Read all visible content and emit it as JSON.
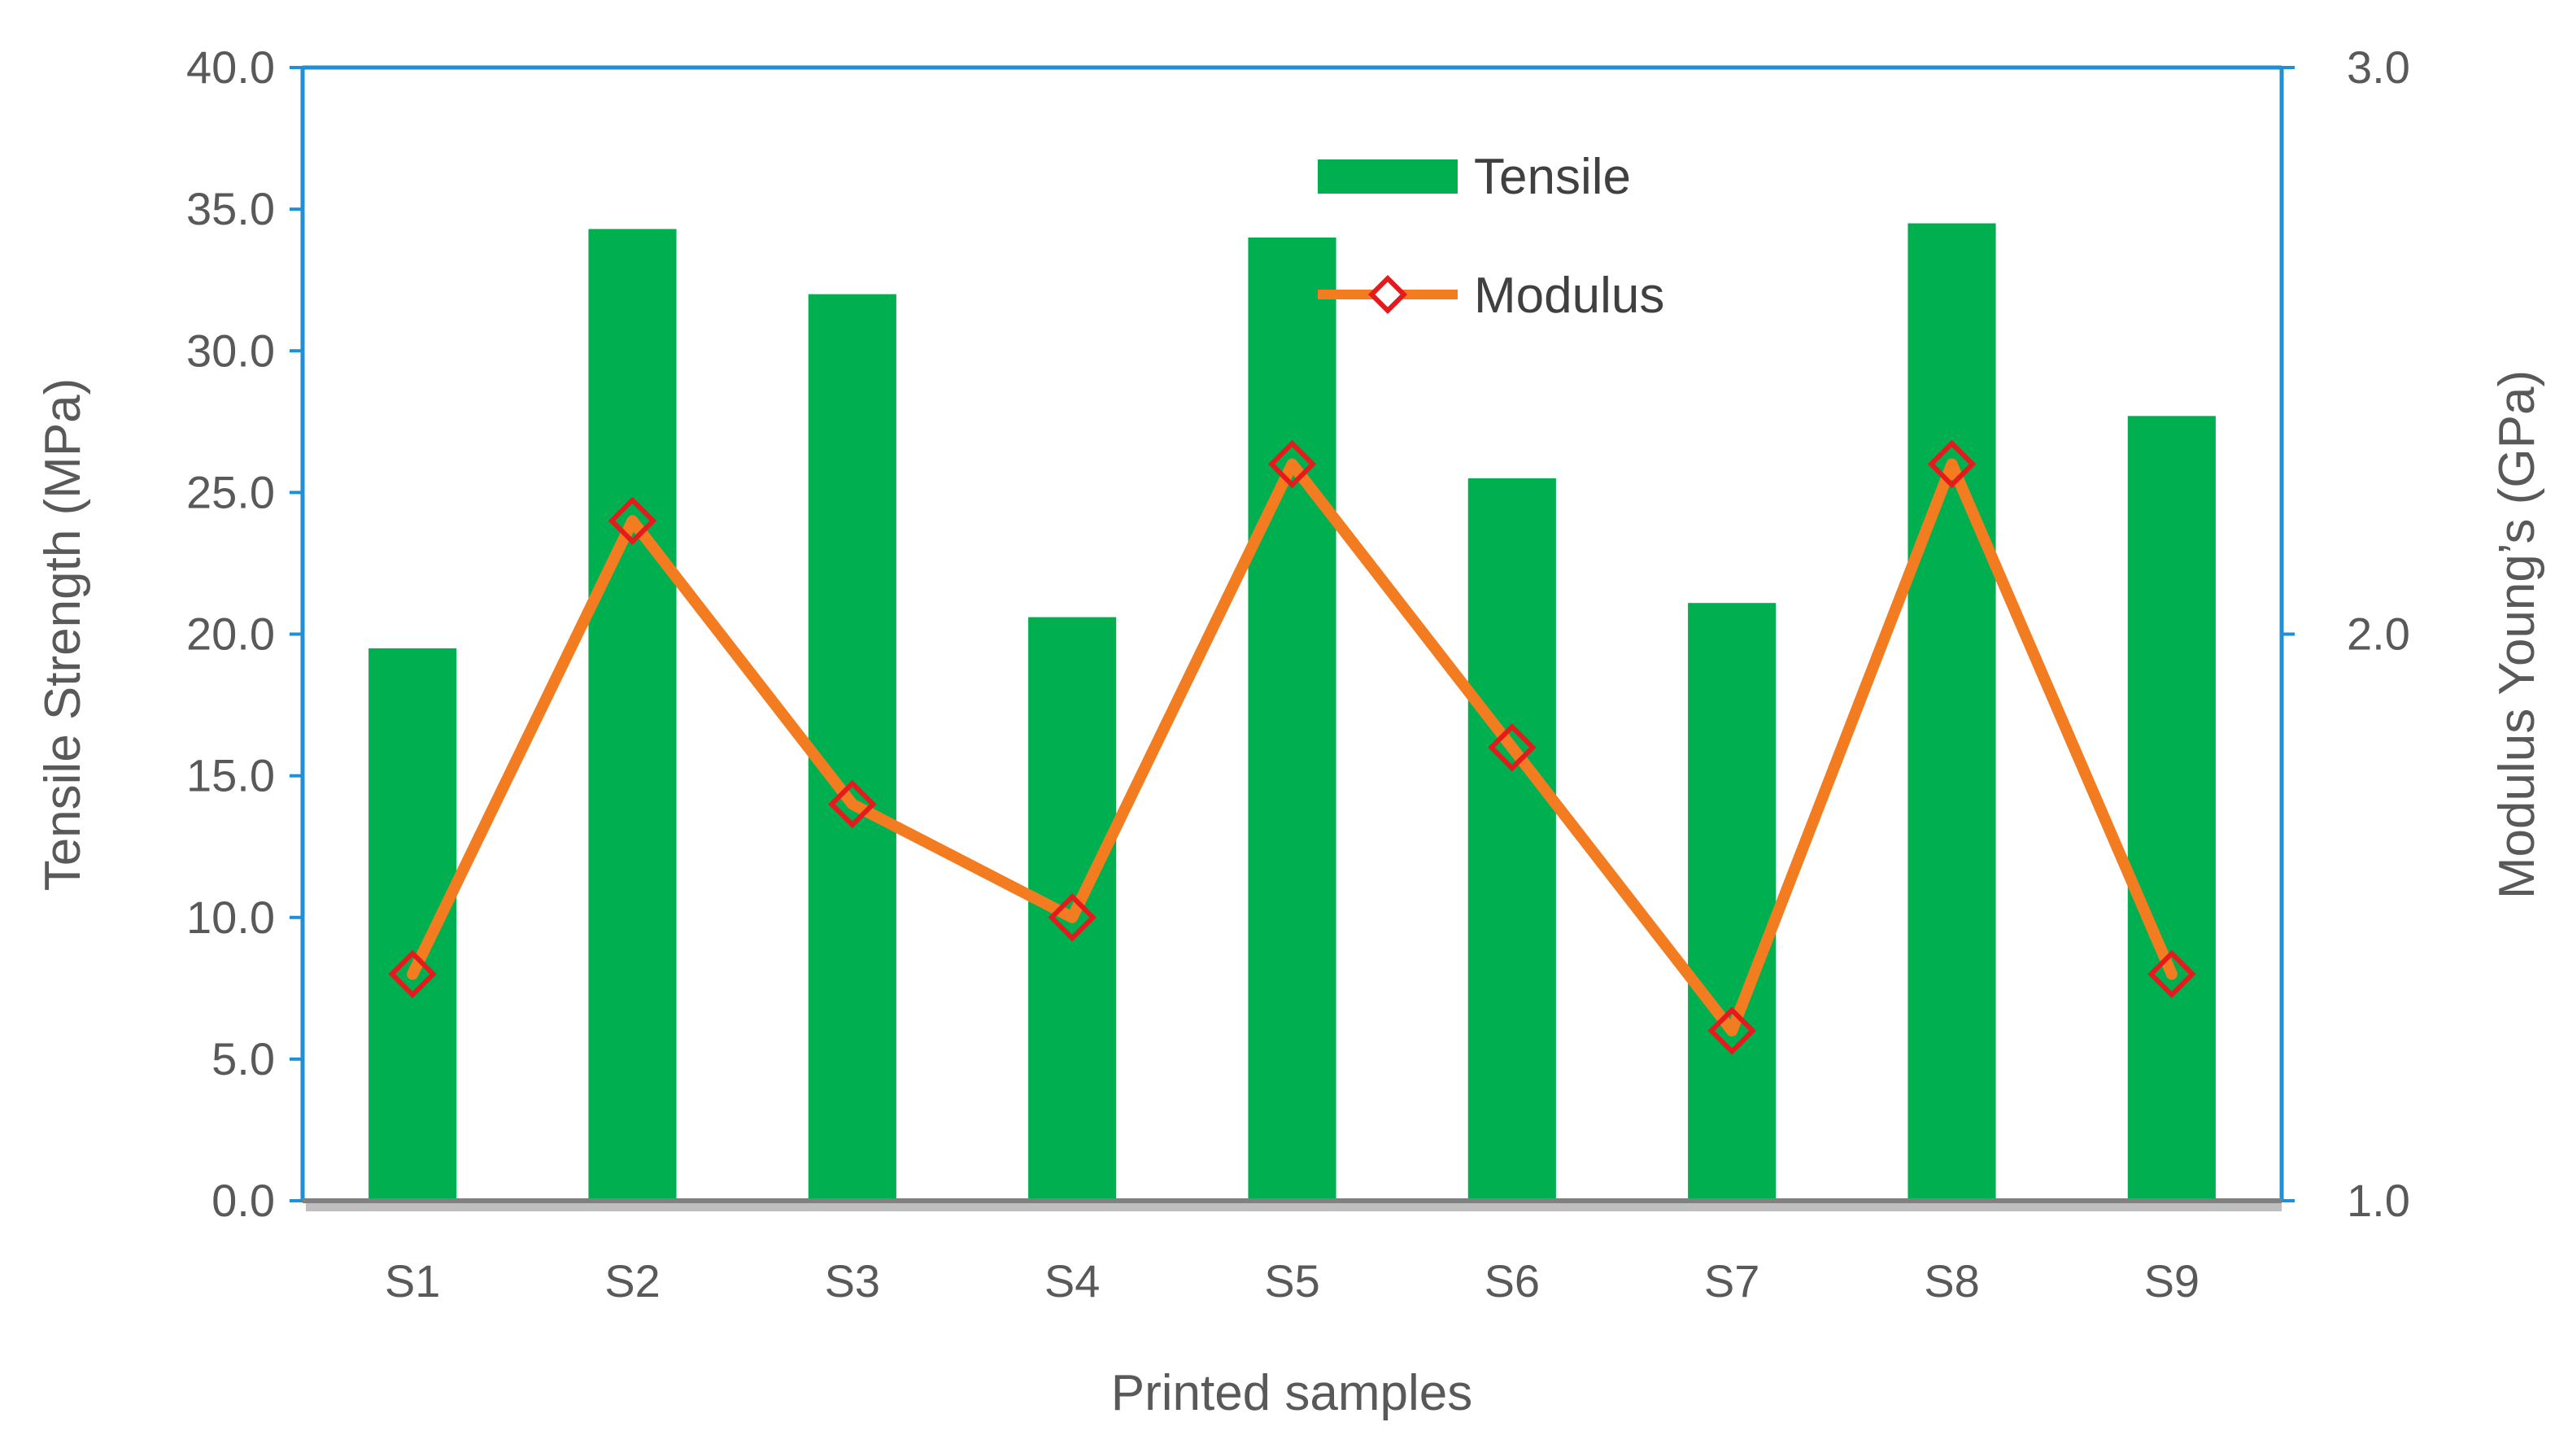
{
  "chart_data": {
    "type": "bar",
    "title": "",
    "categories": [
      "S1",
      "S2",
      "S3",
      "S4",
      "S5",
      "S6",
      "S7",
      "S8",
      "S9"
    ],
    "series": [
      {
        "name": "Tensile",
        "type": "bar",
        "axis": "left",
        "color": "#00B050",
        "values": [
          19.5,
          34.3,
          32.0,
          20.6,
          34.0,
          25.5,
          21.1,
          34.5,
          27.7
        ]
      },
      {
        "name": "Modulus",
        "type": "line",
        "axis": "right",
        "color": "#F47C20",
        "marker_color": "#E41A1C",
        "values": [
          1.4,
          2.2,
          1.7,
          1.5,
          2.3,
          1.8,
          1.3,
          2.3,
          1.4
        ]
      }
    ],
    "xlabel": "Printed samples",
    "ylabel": "Tensile Strength (MPa)",
    "y2label": "Modulus Young’s (GPa)",
    "ylim": [
      0,
      40
    ],
    "y2lim": [
      1,
      3
    ],
    "yticks": [
      "0.0",
      "5.0",
      "10.0",
      "15.0",
      "20.0",
      "25.0",
      "30.0",
      "35.0",
      "40.0"
    ],
    "y2ticks": [
      "1.0",
      "2.0",
      "3.0"
    ],
    "legend_position": "top-center",
    "grid": false
  }
}
